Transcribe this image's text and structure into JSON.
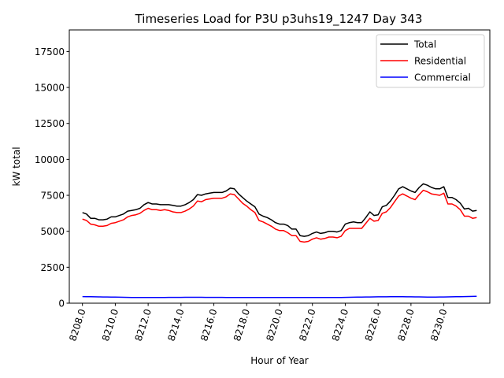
{
  "chart_data": {
    "type": "line",
    "title": "Timeseries Load for P3U p3uhs19_1247  Day 343",
    "xlabel": "Hour of Year",
    "ylabel": "kW total",
    "xlim": [
      8207.2,
      8232.8
    ],
    "ylim": [
      0,
      19000
    ],
    "xticks": [
      8208,
      8210,
      8212,
      8214,
      8216,
      8218,
      8220,
      8222,
      8224,
      8226,
      8228,
      8230
    ],
    "xtick_labels": [
      "8208.0",
      "8210.0",
      "8212.0",
      "8214.0",
      "8216.0",
      "8218.0",
      "8220.0",
      "8222.0",
      "8224.0",
      "8226.0",
      "8228.0",
      "8230.0"
    ],
    "yticks": [
      0,
      2500,
      5000,
      7500,
      10000,
      12500,
      15000,
      17500
    ],
    "ytick_labels": [
      "0",
      "2500",
      "5000",
      "7500",
      "10000",
      "12500",
      "15000",
      "17500"
    ],
    "grid": false,
    "legend_position": "top-right",
    "x_start": 8208.0,
    "x_step": 0.25,
    "series": [
      {
        "name": "Total",
        "color": "#000000",
        "values": [
          6300,
          6200,
          5900,
          5900,
          5800,
          5800,
          5850,
          6000,
          6000,
          6100,
          6200,
          6400,
          6450,
          6500,
          6600,
          6850,
          7000,
          6900,
          6900,
          6850,
          6850,
          6850,
          6800,
          6750,
          6750,
          6850,
          7000,
          7200,
          7550,
          7500,
          7600,
          7650,
          7700,
          7700,
          7700,
          7800,
          8000,
          7950,
          7600,
          7350,
          7100,
          6900,
          6700,
          6200,
          6050,
          5950,
          5800,
          5600,
          5500,
          5500,
          5400,
          5150,
          5150,
          4700,
          4650,
          4700,
          4850,
          4950,
          4850,
          4900,
          5000,
          5000,
          4950,
          5050,
          5500,
          5600,
          5650,
          5600,
          5600,
          5950,
          6350,
          6100,
          6150,
          6700,
          6800,
          7100,
          7500,
          7950,
          8100,
          7950,
          7800,
          7700,
          8050,
          8300,
          8200,
          8050,
          7950,
          7950,
          8100,
          7350,
          7350,
          7200,
          6950,
          6550,
          6600,
          6400,
          6450
        ]
      },
      {
        "name": "Residential",
        "color": "#ff0000",
        "values": [
          5850,
          5750,
          5500,
          5450,
          5350,
          5350,
          5400,
          5550,
          5600,
          5700,
          5800,
          6000,
          6100,
          6150,
          6250,
          6450,
          6600,
          6500,
          6500,
          6450,
          6500,
          6450,
          6350,
          6300,
          6300,
          6400,
          6550,
          6750,
          7100,
          7050,
          7200,
          7250,
          7300,
          7300,
          7300,
          7400,
          7600,
          7550,
          7250,
          6950,
          6750,
          6500,
          6300,
          5750,
          5650,
          5500,
          5350,
          5150,
          5050,
          5050,
          4900,
          4700,
          4700,
          4300,
          4250,
          4300,
          4450,
          4550,
          4450,
          4500,
          4600,
          4600,
          4550,
          4650,
          5050,
          5200,
          5200,
          5200,
          5200,
          5550,
          5900,
          5700,
          5750,
          6250,
          6350,
          6650,
          7050,
          7450,
          7600,
          7450,
          7300,
          7200,
          7550,
          7850,
          7750,
          7600,
          7550,
          7500,
          7650,
          6900,
          6900,
          6750,
          6500,
          6050,
          6050,
          5900,
          5950
        ]
      },
      {
        "name": "Commercial",
        "color": "#0000ff",
        "values": [
          460,
          455,
          450,
          445,
          440,
          435,
          430,
          425,
          420,
          415,
          410,
          405,
          400,
          398,
          396,
          395,
          395,
          396,
          398,
          400,
          402,
          404,
          405,
          406,
          407,
          408,
          408,
          408,
          408,
          408,
          407,
          406,
          405,
          404,
          403,
          402,
          402,
          402,
          402,
          402,
          402,
          402,
          402,
          402,
          402,
          402,
          402,
          402,
          402,
          402,
          402,
          402,
          402,
          402,
          402,
          402,
          402,
          402,
          402,
          402,
          402,
          402,
          402,
          402,
          405,
          410,
          415,
          420,
          425,
          430,
          435,
          440,
          442,
          444,
          446,
          447,
          448,
          448,
          447,
          445,
          443,
          440,
          436,
          432,
          428,
          424,
          425,
          430,
          435,
          440,
          445,
          450,
          455,
          460,
          465,
          470,
          475
        ]
      }
    ]
  }
}
